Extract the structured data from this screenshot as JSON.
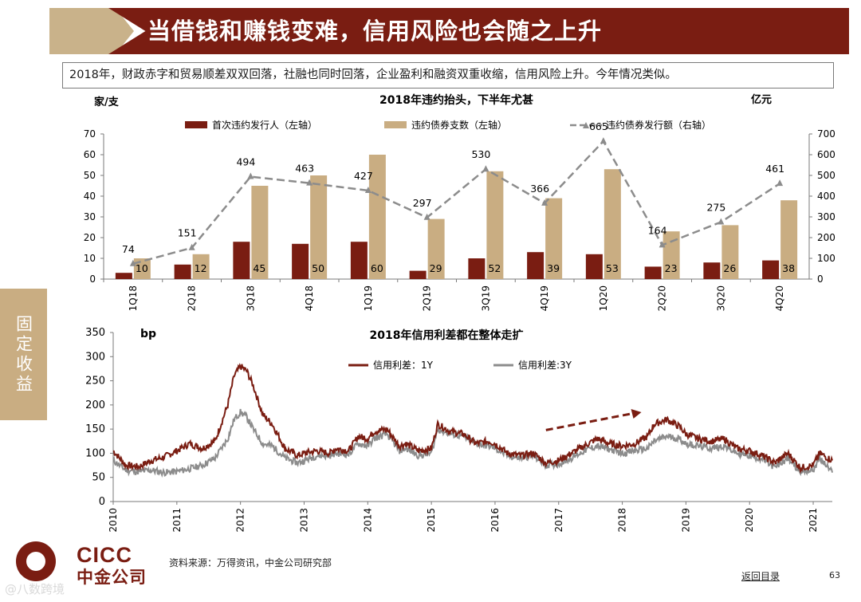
{
  "header": {
    "title": "当借钱和赚钱变难，信用风险也会随之上升"
  },
  "summary": "2018年，财政赤字和贸易顺差双双回落，社融也同时回落，企业盈利和融资双重收缩，信用风险上升。今年情况类似。",
  "side_tab": "固定收益",
  "chart_data": [
    {
      "type": "bar",
      "title": "2018年违约抬头，下半年尤甚",
      "left_unit": "家/支",
      "right_unit": "亿元",
      "categories": [
        "1Q18",
        "2Q18",
        "3Q18",
        "4Q18",
        "1Q19",
        "2Q19",
        "3Q19",
        "4Q19",
        "1Q20",
        "2Q20",
        "3Q20",
        "4Q20"
      ],
      "series": [
        {
          "name": "首次违约发行人（左轴）",
          "axis": "left",
          "values": [
            3,
            7,
            18,
            17,
            18,
            4,
            10,
            13,
            12,
            6,
            8,
            9
          ],
          "color": "#7a1d12"
        },
        {
          "name": "违约债券支数（左轴）",
          "axis": "left",
          "values": [
            10,
            12,
            45,
            50,
            60,
            29,
            52,
            39,
            53,
            23,
            26,
            38
          ],
          "color": "#c9ad82"
        },
        {
          "name": "违约债券发行额（右轴）",
          "axis": "right",
          "type": "line",
          "values": [
            74,
            151,
            494,
            463,
            427,
            297,
            530,
            366,
            665,
            164,
            275,
            461
          ],
          "color": "#8c8c8c"
        }
      ],
      "ylim_left": [
        0,
        70
      ],
      "yticks_left": [
        0,
        10,
        20,
        30,
        40,
        50,
        60,
        70
      ],
      "ylim_right": [
        0,
        700
      ],
      "yticks_right": [
        0,
        100,
        200,
        300,
        400,
        500,
        600,
        700
      ]
    },
    {
      "type": "line",
      "title": "2018年信用利差都在整体走扩",
      "ylabel": "bp",
      "ylim": [
        0,
        350
      ],
      "yticks": [
        0,
        50,
        100,
        150,
        200,
        250,
        300,
        350
      ],
      "xlim": [
        2010,
        2021.3
      ],
      "x_ticks": [
        "2010",
        "2011",
        "2012",
        "2013",
        "2014",
        "2015",
        "2016",
        "2017",
        "2018",
        "2019",
        "2020",
        "2021"
      ],
      "series": [
        {
          "name": "信用利差：1Y",
          "color": "#7a1d12",
          "x": [
            2010.0,
            2010.2,
            2010.4,
            2010.6,
            2010.8,
            2011.0,
            2011.2,
            2011.4,
            2011.6,
            2011.8,
            2011.9,
            2012.0,
            2012.1,
            2012.2,
            2012.35,
            2012.5,
            2012.7,
            2012.9,
            2013.0,
            2013.2,
            2013.4,
            2013.5,
            2013.7,
            2013.85,
            2014.0,
            2014.1,
            2014.3,
            2014.5,
            2014.6,
            2014.8,
            2015.0,
            2015.1,
            2015.3,
            2015.5,
            2015.7,
            2015.9,
            2016.0,
            2016.2,
            2016.4,
            2016.6,
            2016.8,
            2017.0,
            2017.2,
            2017.4,
            2017.6,
            2017.8,
            2018.0,
            2018.2,
            2018.4,
            2018.5,
            2018.7,
            2018.9,
            2019.0,
            2019.2,
            2019.4,
            2019.6,
            2019.8,
            2020.0,
            2020.2,
            2020.4,
            2020.6,
            2020.8,
            2021.0,
            2021.1,
            2021.3
          ],
          "values": [
            105,
            75,
            72,
            85,
            92,
            105,
            120,
            110,
            125,
            200,
            260,
            280,
            270,
            240,
            180,
            160,
            110,
            95,
            100,
            105,
            100,
            110,
            105,
            135,
            130,
            145,
            150,
            115,
            120,
            105,
            110,
            160,
            145,
            140,
            120,
            125,
            120,
            100,
            95,
            100,
            80,
            85,
            100,
            115,
            130,
            120,
            115,
            120,
            135,
            160,
            170,
            155,
            140,
            130,
            125,
            130,
            110,
            105,
            95,
            80,
            100,
            70,
            75,
            100,
            85
          ]
        },
        {
          "name": "信用利差:3Y",
          "color": "#8c8c8c",
          "x": [
            2010.0,
            2010.2,
            2010.4,
            2010.6,
            2010.8,
            2011.0,
            2011.2,
            2011.4,
            2011.6,
            2011.8,
            2011.9,
            2012.0,
            2012.1,
            2012.2,
            2012.35,
            2012.5,
            2012.7,
            2012.9,
            2013.0,
            2013.2,
            2013.4,
            2013.5,
            2013.7,
            2013.85,
            2014.0,
            2014.1,
            2014.3,
            2014.5,
            2014.6,
            2014.8,
            2015.0,
            2015.1,
            2015.3,
            2015.5,
            2015.7,
            2015.9,
            2016.0,
            2016.2,
            2016.4,
            2016.6,
            2016.8,
            2017.0,
            2017.2,
            2017.4,
            2017.6,
            2017.8,
            2018.0,
            2018.2,
            2018.4,
            2018.5,
            2018.7,
            2018.9,
            2019.0,
            2019.2,
            2019.4,
            2019.6,
            2019.8,
            2020.0,
            2020.2,
            2020.4,
            2020.6,
            2020.8,
            2021.0,
            2021.1,
            2021.3
          ],
          "values": [
            85,
            65,
            62,
            65,
            60,
            62,
            68,
            75,
            90,
            130,
            170,
            185,
            175,
            150,
            120,
            115,
            90,
            80,
            85,
            95,
            95,
            100,
            98,
            120,
            115,
            130,
            140,
            105,
            110,
            95,
            100,
            150,
            140,
            135,
            120,
            115,
            110,
            95,
            90,
            95,
            75,
            78,
            90,
            105,
            115,
            108,
            100,
            105,
            110,
            125,
            135,
            130,
            120,
            115,
            110,
            115,
            100,
            95,
            88,
            70,
            90,
            62,
            65,
            90,
            60
          ]
        }
      ],
      "annotation": "rising trend arrow over 2017–2018"
    }
  ],
  "footer": {
    "logo_en": "CICC",
    "logo_cn": "中金公司",
    "source": "资料来源：万得资讯，中金公司研究部",
    "back_link": "返回目录",
    "page": "63",
    "watermark": "@八数跨境"
  }
}
